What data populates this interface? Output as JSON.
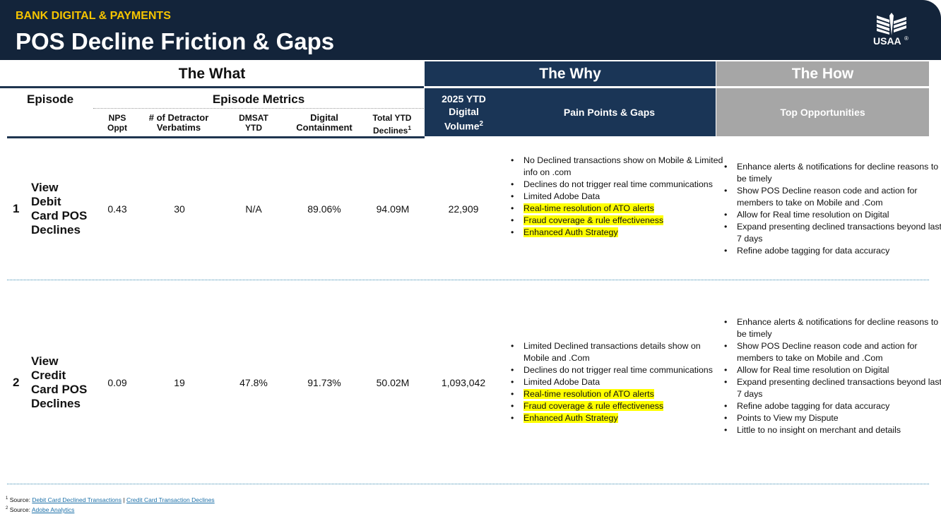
{
  "header": {
    "kicker": "BANK DIGITAL & PAYMENTS",
    "title": "POS Decline Friction & Gaps",
    "logo_text": "USAA",
    "logo_mark": "®"
  },
  "bands": {
    "what": "The What",
    "why": "The Why",
    "how": "The How"
  },
  "columns": {
    "episode": "Episode",
    "episode_metrics": "Episode Metrics",
    "nps": [
      "NPS",
      "Oppt"
    ],
    "detractor": [
      "# of Detractor",
      "Verbatims"
    ],
    "dmsat": [
      "DMSAT",
      "YTD"
    ],
    "containment": [
      "Digital",
      "Containment"
    ],
    "declines": [
      "Total YTD",
      "Declines"
    ],
    "declines_sup": "1",
    "volume": [
      "2025 YTD",
      "Digital",
      "Volume"
    ],
    "volume_sup": "2",
    "pain": "Pain Points & Gaps",
    "opp": "Top Opportunities"
  },
  "rows": [
    {
      "num": "1",
      "episode": [
        "View",
        "Debit",
        "Card POS",
        "Declines"
      ],
      "nps": "0.43",
      "detractor": "30",
      "dmsat": "N/A",
      "containment": "89.06%",
      "declines": "94.09M",
      "volume": "22,909",
      "pain": [
        {
          "t": "No Declined transactions show on Mobile & Limited info on .com",
          "h": false
        },
        {
          "t": "Declines do not trigger real time communications",
          "h": false
        },
        {
          "t": "Limited Adobe Data",
          "h": false
        },
        {
          "t": "Real-time resolution of ATO alerts",
          "h": true
        },
        {
          "t": "Fraud coverage & rule effectiveness",
          "h": true
        },
        {
          "t": "Enhanced Auth Strategy",
          "h": true
        }
      ],
      "opp": [
        "Enhance alerts & notifications for decline reasons to be timely",
        "Show POS Decline reason code and action for members to take on Mobile and .Com",
        "Allow for Real time resolution on Digital",
        "Expand presenting declined transactions beyond last 7 days",
        "Refine adobe tagging for data accuracy"
      ]
    },
    {
      "num": "2",
      "episode": [
        "View",
        "Credit",
        "Card POS",
        "Declines"
      ],
      "nps": "0.09",
      "detractor": "19",
      "dmsat": "47.8%",
      "containment": "91.73%",
      "declines": "50.02M",
      "volume": "1,093,042",
      "pain": [
        {
          "t": "Limited Declined transactions details show on Mobile and .Com",
          "h": false
        },
        {
          "t": "Declines do not trigger real time communications",
          "h": false
        },
        {
          "t": "Limited Adobe Data",
          "h": false
        },
        {
          "t": "Real-time resolution of ATO alerts",
          "h": true
        },
        {
          "t": "Fraud coverage & rule effectiveness",
          "h": true
        },
        {
          "t": "Enhanced Auth Strategy",
          "h": true
        }
      ],
      "opp": [
        "Enhance alerts & notifications for decline reasons to be timely",
        "Show POS Decline reason code and action for members to take on Mobile and .Com",
        "Allow for Real time resolution on Digital",
        "Expand presenting declined transactions beyond last 7 days",
        "Refine adobe tagging for data accuracy",
        "Points to View my Dispute",
        "Little to no insight on merchant and details"
      ]
    }
  ],
  "footer": {
    "s1_num": "1",
    "s1_label": "Source:",
    "s1_link1": "Debit Card Declined Transactions",
    "s1_sep": "|",
    "s1_link2": "Credit Card Transaction  Declines",
    "s2_num": "2",
    "s2_label": "Source:",
    "s2_link": "Adobe Analytics"
  }
}
